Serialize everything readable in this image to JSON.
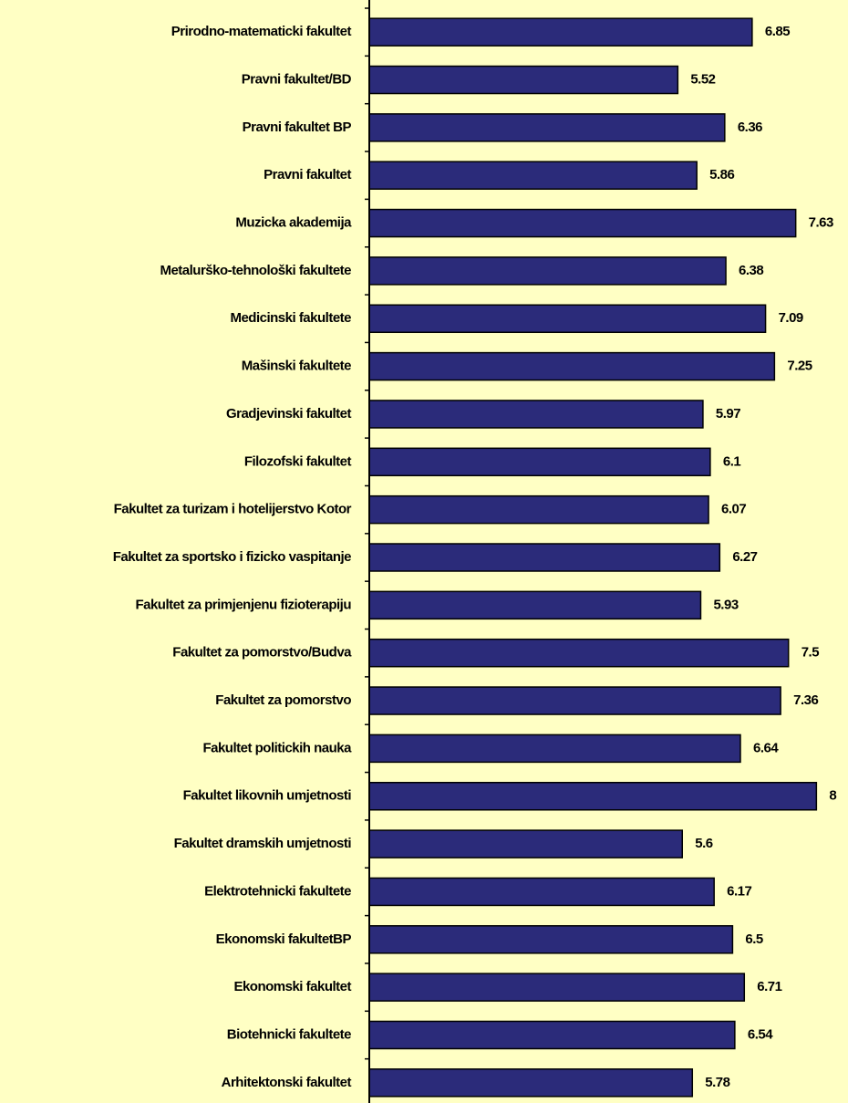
{
  "chart_data": {
    "type": "bar",
    "orientation": "horizontal",
    "color": "#2b2b7a",
    "categories": [
      "Prirodno-matematicki fakultet",
      "Pravni fakultet/BD",
      "Pravni fakultet BP",
      "Pravni fakultet",
      "Muzicka akademija",
      "Metalurško-tehnološki fakultete",
      "Medicinski fakultete",
      "Mašinski fakultete",
      "Gradjevinski fakultet",
      "Filozofski fakultet",
      "Fakultet za turizam i hotelijerstvo Kotor",
      "Fakultet za sportsko i fizicko vaspitanje",
      "Fakultet za primjenjenu fizioterapiju",
      "Fakultet za pomorstvo/Budva",
      "Fakultet za pomorstvo",
      "Fakultet politickih nauka",
      "Fakultet likovnih umjetnosti",
      "Fakultet dramskih umjetnosti",
      "Elektrotehnicki fakultete",
      "Ekonomski fakultetBP",
      "Ekonomski fakultet",
      "Biotehnicki fakultete",
      "Arhitektonski fakultet"
    ],
    "values": [
      6.85,
      5.52,
      6.36,
      5.86,
      7.63,
      6.38,
      7.09,
      7.25,
      5.97,
      6.1,
      6.07,
      6.27,
      5.93,
      7.5,
      7.36,
      6.64,
      8,
      5.6,
      6.17,
      6.5,
      6.71,
      6.54,
      5.78
    ],
    "xlim": [
      0,
      8.5
    ]
  }
}
